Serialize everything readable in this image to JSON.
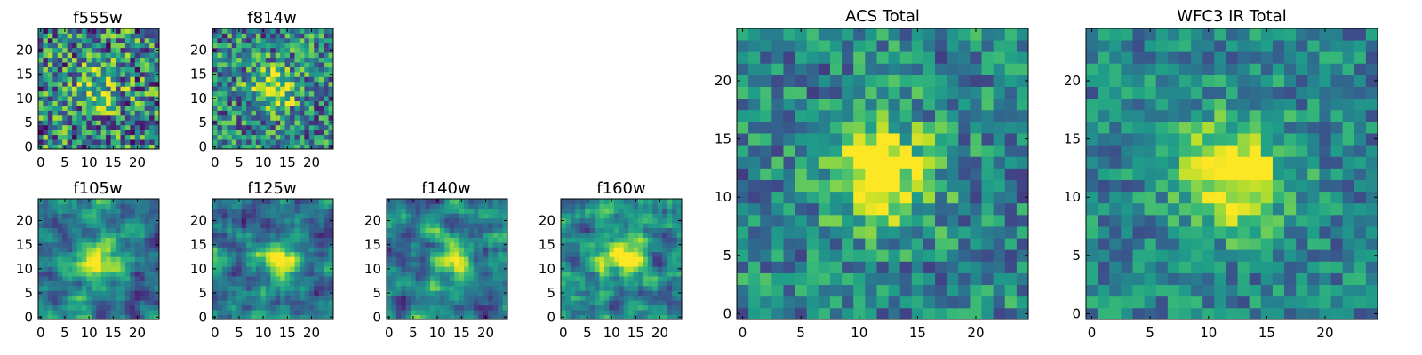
{
  "chart_data": [
    {
      "type": "heatmap",
      "title": "f555w",
      "colormap": "viridis",
      "grid_size": [
        25,
        25
      ],
      "xlim": [
        -0.5,
        24.5
      ],
      "ylim": [
        -0.5,
        24.5
      ],
      "xticks": [
        0,
        5,
        10,
        15,
        20
      ],
      "yticks": [
        0,
        5,
        10,
        15,
        20
      ],
      "xtick_labels": [
        "0",
        "5",
        "10",
        "15",
        "20"
      ],
      "ytick_labels": [
        "0",
        "5",
        "10",
        "15",
        "20"
      ],
      "peak_xy": [
        12,
        12
      ],
      "peak_level": 0.35,
      "noise_level": 0.9,
      "smoothness": 0
    },
    {
      "type": "heatmap",
      "title": "f814w",
      "colormap": "viridis",
      "grid_size": [
        25,
        25
      ],
      "xlim": [
        -0.5,
        24.5
      ],
      "ylim": [
        -0.5,
        24.5
      ],
      "xticks": [
        0,
        5,
        10,
        15,
        20
      ],
      "yticks": [
        0,
        5,
        10,
        15,
        20
      ],
      "xtick_labels": [
        "0",
        "5",
        "10",
        "15",
        "20"
      ],
      "ytick_labels": [
        "0",
        "5",
        "10",
        "15",
        "20"
      ],
      "peak_xy": [
        12,
        12
      ],
      "peak_level": 0.55,
      "noise_level": 0.75,
      "smoothness": 0
    },
    {
      "type": "heatmap",
      "title": "f105w",
      "colormap": "viridis",
      "grid_size": [
        25,
        25
      ],
      "xlim": [
        -0.5,
        24.5
      ],
      "ylim": [
        -0.5,
        24.5
      ],
      "xticks": [
        0,
        5,
        10,
        15,
        20
      ],
      "yticks": [
        0,
        5,
        10,
        15,
        20
      ],
      "xtick_labels": [
        "0",
        "5",
        "10",
        "15",
        "20"
      ],
      "ytick_labels": [
        "0",
        "5",
        "10",
        "15",
        "20"
      ],
      "peak_xy": [
        12,
        12
      ],
      "peak_level": 0.55,
      "noise_level": 0.7,
      "smoothness": 1
    },
    {
      "type": "heatmap",
      "title": "f125w",
      "colormap": "viridis",
      "grid_size": [
        25,
        25
      ],
      "xlim": [
        -0.5,
        24.5
      ],
      "ylim": [
        -0.5,
        24.5
      ],
      "xticks": [
        0,
        5,
        10,
        15,
        20
      ],
      "yticks": [
        0,
        5,
        10,
        15,
        20
      ],
      "xtick_labels": [
        "0",
        "5",
        "10",
        "15",
        "20"
      ],
      "ytick_labels": [
        "0",
        "5",
        "10",
        "15",
        "20"
      ],
      "peak_xy": [
        13,
        12
      ],
      "peak_level": 0.45,
      "noise_level": 0.75,
      "smoothness": 1
    },
    {
      "type": "heatmap",
      "title": "f140w",
      "colormap": "viridis",
      "grid_size": [
        25,
        25
      ],
      "xlim": [
        -0.5,
        24.5
      ],
      "ylim": [
        -0.5,
        24.5
      ],
      "xticks": [
        0,
        5,
        10,
        15,
        20
      ],
      "yticks": [
        0,
        5,
        10,
        15,
        20
      ],
      "xtick_labels": [
        "0",
        "5",
        "10",
        "15",
        "20"
      ],
      "ytick_labels": [
        "0",
        "5",
        "10",
        "15",
        "20"
      ],
      "peak_xy": [
        13,
        12
      ],
      "peak_level": 0.5,
      "noise_level": 0.75,
      "smoothness": 1
    },
    {
      "type": "heatmap",
      "title": "f160w",
      "colormap": "viridis",
      "grid_size": [
        25,
        25
      ],
      "xlim": [
        -0.5,
        24.5
      ],
      "ylim": [
        -0.5,
        24.5
      ],
      "xticks": [
        0,
        5,
        10,
        15,
        20
      ],
      "yticks": [
        0,
        5,
        10,
        15,
        20
      ],
      "xtick_labels": [
        "0",
        "5",
        "10",
        "15",
        "20"
      ],
      "ytick_labels": [
        "0",
        "5",
        "10",
        "15",
        "20"
      ],
      "peak_xy": [
        12,
        12
      ],
      "peak_level": 0.55,
      "noise_level": 0.7,
      "smoothness": 1
    },
    {
      "type": "heatmap",
      "title": "ACS Total",
      "colormap": "viridis",
      "grid_size": [
        25,
        25
      ],
      "xlim": [
        -0.5,
        24.5
      ],
      "ylim": [
        -0.5,
        24.5
      ],
      "xticks": [
        0,
        5,
        10,
        15,
        20
      ],
      "yticks": [
        0,
        5,
        10,
        15,
        20
      ],
      "xtick_labels": [
        "0",
        "5",
        "10",
        "15",
        "20"
      ],
      "ytick_labels": [
        "0",
        "5",
        "10",
        "15",
        "20"
      ],
      "peak_xy": [
        12,
        12
      ],
      "peak_level": 0.6,
      "noise_level": 0.55,
      "smoothness": 0
    },
    {
      "type": "heatmap",
      "title": "WFC3 IR Total",
      "colormap": "viridis",
      "grid_size": [
        25,
        25
      ],
      "xlim": [
        -0.5,
        24.5
      ],
      "ylim": [
        -0.5,
        24.5
      ],
      "xticks": [
        0,
        5,
        10,
        15,
        20
      ],
      "yticks": [
        0,
        5,
        10,
        15,
        20
      ],
      "xtick_labels": [
        "0",
        "5",
        "10",
        "15",
        "20"
      ],
      "ytick_labels": [
        "0",
        "5",
        "10",
        "15",
        "20"
      ],
      "peak_xy": [
        12,
        12
      ],
      "peak_level": 0.65,
      "noise_level": 0.45,
      "smoothness": 0
    }
  ]
}
